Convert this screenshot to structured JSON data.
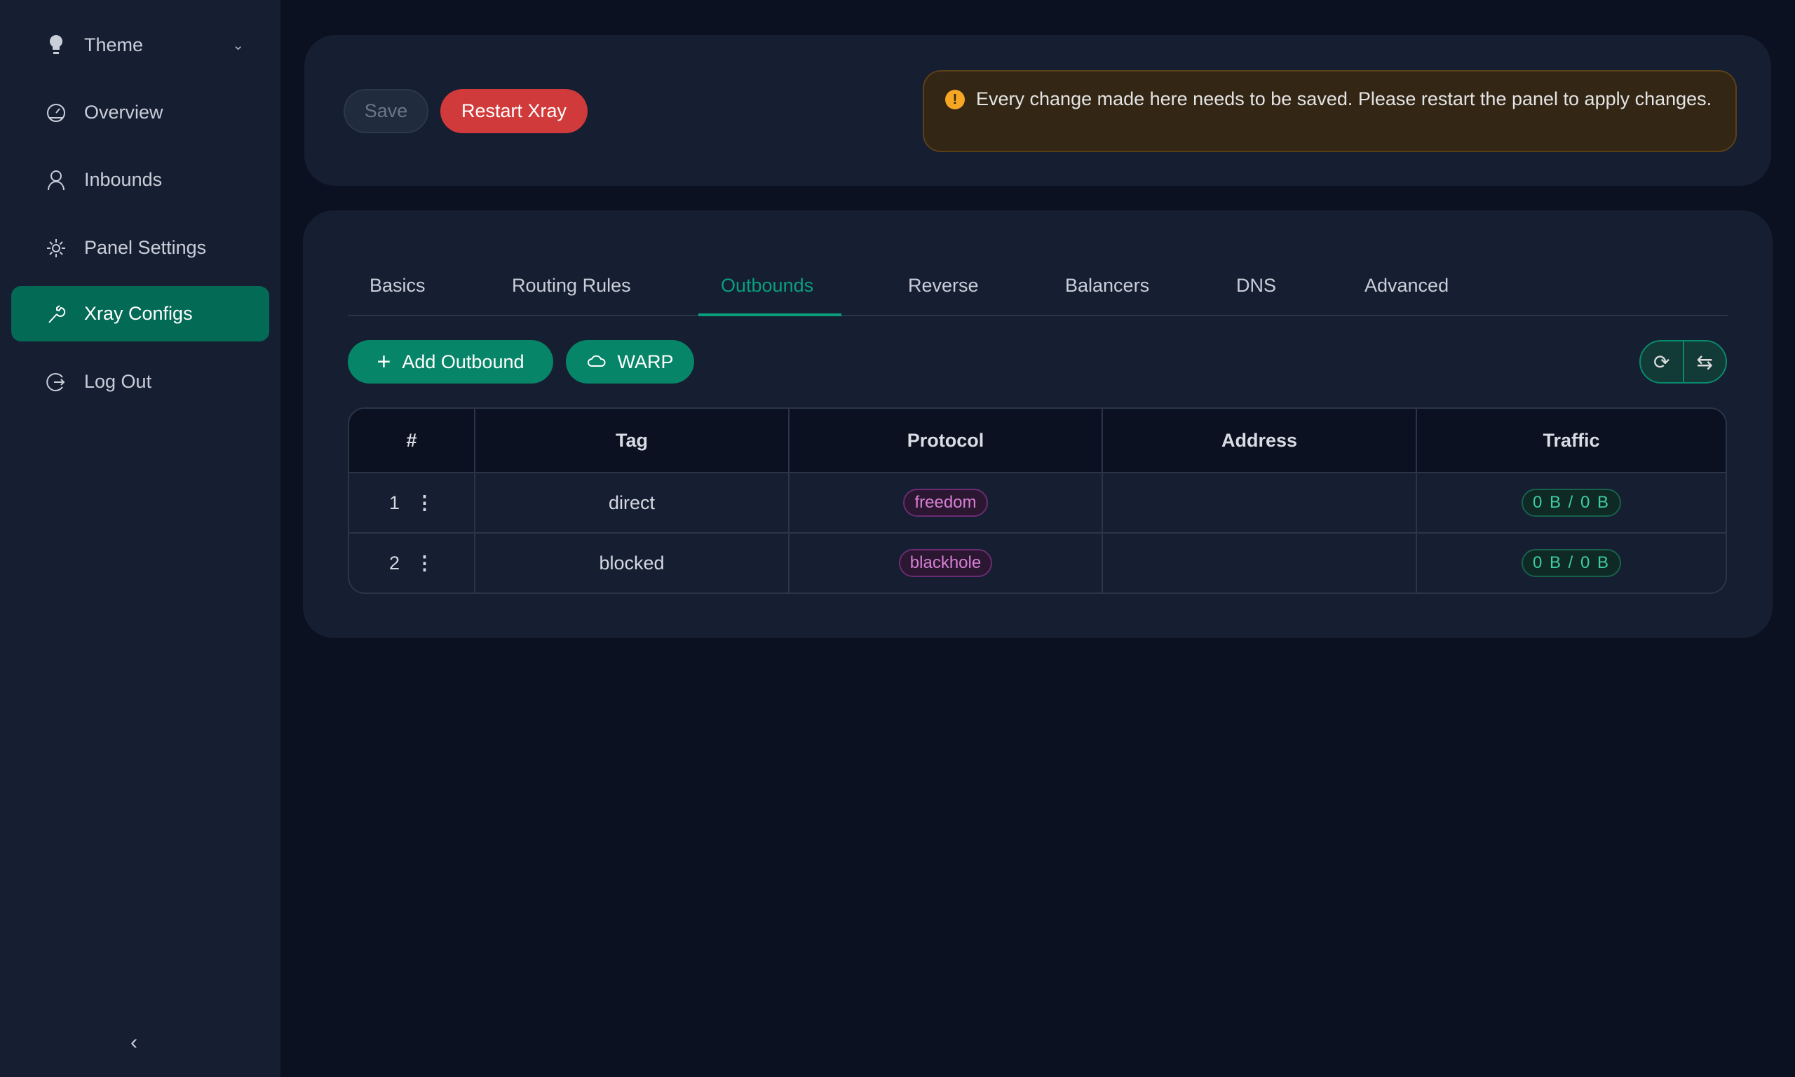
{
  "sidebar": {
    "items": [
      {
        "label": "Theme",
        "icon": "bulb-icon"
      },
      {
        "label": "Overview",
        "icon": "dashboard-icon"
      },
      {
        "label": "Inbounds",
        "icon": "user-icon"
      },
      {
        "label": "Panel Settings",
        "icon": "gear-icon"
      },
      {
        "label": "Xray Configs",
        "icon": "wrench-icon",
        "active": true
      },
      {
        "label": "Log Out",
        "icon": "logout-icon"
      }
    ]
  },
  "toolbar": {
    "save_label": "Save",
    "restart_label": "Restart Xray"
  },
  "alert": {
    "text": "Every change made here needs to be saved. Please restart the panel to apply changes."
  },
  "tabs": [
    "Basics",
    "Routing Rules",
    "Outbounds",
    "Reverse",
    "Balancers",
    "DNS",
    "Advanced"
  ],
  "active_tab": "Outbounds",
  "actions": {
    "add_outbound": "Add Outbound",
    "warp": "WARP"
  },
  "table": {
    "headers": [
      "#",
      "Tag",
      "Protocol",
      "Address",
      "Traffic"
    ],
    "rows": [
      {
        "index": "1",
        "tag": "direct",
        "protocol": "freedom",
        "address": "",
        "traffic": "0 B / 0 B"
      },
      {
        "index": "2",
        "tag": "blocked",
        "protocol": "blackhole",
        "address": "",
        "traffic": "0 B / 0 B"
      }
    ]
  },
  "colors": {
    "accent": "#078568",
    "danger": "#d13a3a",
    "warning": "#f5a623"
  }
}
